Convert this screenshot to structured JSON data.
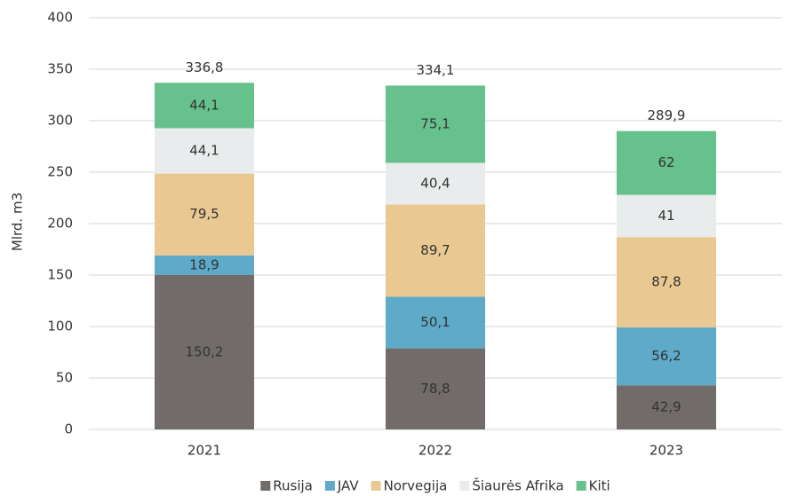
{
  "chart_data": {
    "type": "stacked_bar",
    "y_label": "Mlrd. m3",
    "categories": [
      "2021",
      "2022",
      "2023"
    ],
    "series": [
      {
        "name": "Rusija",
        "color": "#716b6a",
        "values": [
          150.2,
          78.8,
          42.9
        ],
        "value_labels": [
          "150,2",
          "78,8",
          "42,9"
        ]
      },
      {
        "name": "JAV",
        "color": "#5eaac8",
        "values": [
          18.9,
          50.1,
          56.2
        ],
        "value_labels": [
          "18,9",
          "50,1",
          "56,2"
        ]
      },
      {
        "name": "Norvegija",
        "color": "#e9c892",
        "values": [
          79.5,
          89.7,
          87.8
        ],
        "value_labels": [
          "79,5",
          "89,7",
          "87,8"
        ]
      },
      {
        "name": "Šiaurės Afrika",
        "color": "#e8ecec",
        "values": [
          44.1,
          40.4,
          41
        ],
        "value_labels": [
          "44,1",
          "40,4",
          "41"
        ]
      },
      {
        "name": "Kiti",
        "color": "#67c18c",
        "values": [
          44.1,
          75.1,
          62
        ],
        "value_labels": [
          "44,1",
          "75,1",
          "62"
        ]
      }
    ],
    "totals": [
      336.8,
      334.1,
      289.9
    ],
    "total_labels": [
      "336,8",
      "334,1",
      "289,9"
    ],
    "ylim": [
      0,
      400
    ],
    "yticks": [
      0,
      50,
      100,
      150,
      200,
      250,
      300,
      350,
      400
    ],
    "grid": true,
    "legend": "bottom"
  }
}
